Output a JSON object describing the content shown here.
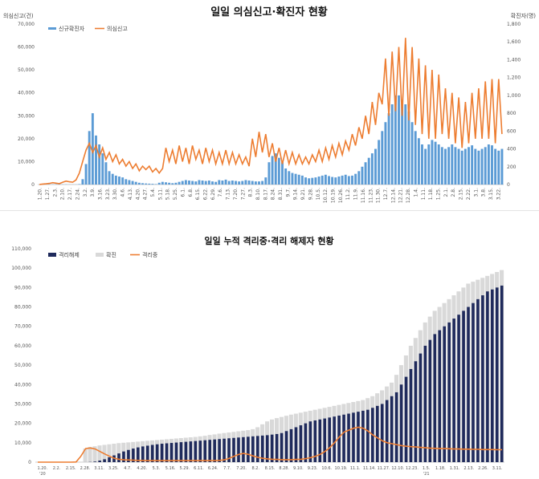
{
  "chart_data": [
    {
      "type": "bar",
      "title": "일일 의심신고·확진자 현황",
      "ylabel": "의심신고(건)",
      "y2label": "확진자(명)",
      "ylim": [
        0,
        70000
      ],
      "y2lim": [
        0,
        1800
      ],
      "yticks": [
        "0",
        "10,000",
        "20,000",
        "30,000",
        "40,000",
        "50,000",
        "60,000",
        "70,000"
      ],
      "y2ticks": [
        "0",
        "200",
        "400",
        "600",
        "800",
        "1,000",
        "1,200",
        "1,400",
        "1,600",
        "1,800"
      ],
      "xticks": [
        "1.20.",
        "1.27.",
        "2.3.",
        "2.10.",
        "2.17.",
        "2.24.",
        "3.2.",
        "3.9.",
        "3.16.",
        "3.23.",
        "3.30.",
        "4.6.",
        "4.13.",
        "4.20.",
        "4.27.",
        "5.4.",
        "5.11.",
        "5.18.",
        "5.25.",
        "6.1.",
        "6.8.",
        "6.15.",
        "6.22.",
        "6.29.",
        "7.6.",
        "7.13.",
        "7.20.",
        "7.27.",
        "8.3.",
        "8.10.",
        "8.17.",
        "8.24.",
        "8.31.",
        "9.7.",
        "9.14.",
        "9.21.",
        "9.28.",
        "10.5.",
        "10.12.",
        "10.19.",
        "10.26.",
        "11.2.",
        "11.9.",
        "11.16.",
        "11.23.",
        "11.30.",
        "12.7.",
        "12.14.",
        "12.21.",
        "12.28.",
        "1.4.",
        "1.11.",
        "1.18.",
        "1.25.",
        "2.1.",
        "2.8.",
        "2.15.",
        "2.22.",
        "3.1.",
        "3.8.",
        "3.15.",
        "3.22."
      ],
      "legend": "top-left",
      "series": [
        {
          "name": "신규확진자",
          "axis": "right",
          "kind": "bar",
          "color": "#5b9bd5",
          "values": [
            0,
            1,
            1,
            2,
            2,
            3,
            3,
            2,
            2,
            1,
            1,
            1,
            5,
            60,
            230,
            600,
            800,
            550,
            450,
            350,
            250,
            150,
            120,
            100,
            90,
            80,
            60,
            50,
            40,
            30,
            20,
            15,
            12,
            10,
            8,
            5,
            20,
            30,
            25,
            20,
            15,
            20,
            30,
            40,
            50,
            45,
            40,
            35,
            50,
            45,
            40,
            45,
            35,
            30,
            50,
            45,
            55,
            40,
            45,
            40,
            35,
            40,
            50,
            45,
            40,
            35,
            35,
            40,
            80,
            250,
            320,
            350,
            300,
            250,
            180,
            150,
            130,
            120,
            110,
            100,
            80,
            70,
            75,
            80,
            90,
            100,
            110,
            95,
            85,
            80,
            90,
            100,
            110,
            95,
            100,
            120,
            150,
            200,
            250,
            300,
            350,
            400,
            500,
            600,
            700,
            800,
            900,
            1000,
            1000,
            950,
            900,
            820,
            700,
            600,
            520,
            450,
            400,
            450,
            500,
            480,
            450,
            420,
            400,
            420,
            450,
            420,
            400,
            380,
            400,
            420,
            440,
            400,
            380,
            400,
            420,
            450,
            440,
            400,
            380,
            400
          ]
        },
        {
          "name": "의심신고",
          "axis": "left",
          "kind": "line",
          "color": "#ed7d31",
          "values": [
            50,
            200,
            300,
            500,
            800,
            600,
            400,
            1000,
            1500,
            1200,
            1000,
            2000,
            5000,
            10000,
            15000,
            18000,
            14000,
            17000,
            12000,
            16000,
            11000,
            14000,
            10000,
            13000,
            9000,
            11000,
            8000,
            10000,
            7000,
            9000,
            6000,
            8000,
            6500,
            8000,
            5500,
            7000,
            5000,
            7000,
            16000,
            10000,
            15000,
            9000,
            17000,
            10000,
            16000,
            9000,
            17000,
            11000,
            15000,
            9000,
            16000,
            10000,
            15000,
            9000,
            14000,
            9000,
            15000,
            9000,
            14000,
            9000,
            13000,
            9000,
            12000,
            8000,
            20000,
            12000,
            23000,
            14000,
            22000,
            12000,
            18000,
            10000,
            16000,
            9000,
            15000,
            9000,
            14000,
            9000,
            13000,
            9000,
            12000,
            9000,
            13000,
            10000,
            15000,
            10000,
            16000,
            11000,
            17000,
            12000,
            18000,
            13000,
            19000,
            15000,
            22000,
            17000,
            25000,
            20000,
            30000,
            22000,
            36000,
            26000,
            40000,
            35000,
            55000,
            30000,
            58000,
            32000,
            60000,
            30000,
            64000,
            28000,
            60000,
            26000,
            55000,
            22000,
            52000,
            20000,
            50000,
            20000,
            48000,
            22000,
            42000,
            20000,
            40000,
            18000,
            38000,
            16000,
            36000,
            18000,
            40000,
            20000,
            42000,
            20000,
            45000,
            20000,
            46000,
            18000,
            46000,
            22000
          ]
        }
      ]
    },
    {
      "type": "bar",
      "title": "일일 누적 격리중·격리 해제자 현황",
      "ylim": [
        0,
        110000
      ],
      "yticks": [
        "0",
        "10,000",
        "20,000",
        "30,000",
        "40,000",
        "50,000",
        "60,000",
        "70,000",
        "80,000",
        "90,000",
        "100,000",
        "110,000"
      ],
      "xticks": [
        "1.20.",
        "2.2.",
        "2.15.",
        "2.28.",
        "3.11.",
        "3.25.",
        "4.7.",
        "4.20.",
        "5.3.",
        "5.16.",
        "5.29.",
        "6.11.",
        "6.24.",
        "7.7.",
        "7.20.",
        "8.2.",
        "8.15.",
        "8.28.",
        "9.10.",
        "9.23.",
        "10.6.",
        "10.19.",
        "11.1.",
        "11.14.",
        "11.27.",
        "12.10.",
        "12.23.",
        "1.5.",
        "1.18.",
        "1.31.",
        "2.13.",
        "2.26.",
        "3.11."
      ],
      "xticks_sub": [
        "'20",
        "'21"
      ],
      "legend": "top-left",
      "series": [
        {
          "name": "격리해제",
          "kind": "bar",
          "color": "#1f2a5c",
          "values": [
            0,
            0,
            0,
            0,
            0,
            0,
            0,
            0,
            0,
            0,
            20,
            100,
            300,
            800,
            1500,
            2500,
            3500,
            4500,
            5500,
            6300,
            7000,
            7600,
            8100,
            8500,
            8900,
            9200,
            9500,
            9700,
            9900,
            10100,
            10300,
            10500,
            10700,
            10900,
            11100,
            11300,
            11500,
            11700,
            11900,
            12100,
            12300,
            12500,
            12700,
            12900,
            13100,
            13300,
            13500,
            13700,
            13900,
            14200,
            14500,
            15000,
            16000,
            17000,
            18000,
            19000,
            20000,
            21000,
            21500,
            22000,
            22500,
            23000,
            23500,
            24000,
            24500,
            25000,
            25500,
            26000,
            26500,
            27000,
            28000,
            29000,
            30000,
            32000,
            34000,
            36000,
            40000,
            44000,
            48000,
            52000,
            56000,
            60000,
            63000,
            66000,
            68000,
            70000,
            72000,
            74000,
            76000,
            78000,
            80000,
            82000,
            84000,
            86000,
            88000,
            89000,
            90000,
            91000
          ]
        },
        {
          "name": "확진",
          "kind": "bar",
          "color": "#d9d9d9",
          "values": [
            0,
            0,
            0,
            0,
            0,
            0,
            0,
            0,
            0,
            0,
            7000,
            7800,
            8200,
            8600,
            8900,
            9200,
            9500,
            9800,
            10000,
            10200,
            10400,
            10600,
            10800,
            11000,
            11200,
            11400,
            11600,
            11800,
            12000,
            12200,
            12400,
            12600,
            12800,
            13000,
            13300,
            13600,
            14000,
            14300,
            14700,
            15000,
            15300,
            15600,
            15900,
            16200,
            16500,
            17000,
            18000,
            19500,
            21000,
            22000,
            22700,
            23300,
            23900,
            24500,
            25000,
            25500,
            26000,
            26500,
            27000,
            27500,
            28000,
            28500,
            29000,
            29500,
            30000,
            30500,
            31000,
            31500,
            32000,
            33000,
            34000,
            35500,
            37000,
            39000,
            41000,
            45000,
            50000,
            55000,
            60000,
            64000,
            68000,
            72000,
            75000,
            78000,
            80000,
            82000,
            84000,
            86000,
            88000,
            90000,
            92000,
            93000,
            94000,
            95000,
            96000,
            97000,
            98000,
            99000
          ]
        },
        {
          "name": "격리중",
          "kind": "line",
          "color": "#ed7d31",
          "values": [
            0,
            0,
            0,
            0,
            0,
            0,
            0,
            0,
            100,
            3000,
            7000,
            7300,
            6800,
            5500,
            4200,
            3000,
            2000,
            1500,
            1200,
            1100,
            1000,
            900,
            850,
            800,
            800,
            800,
            800,
            800,
            800,
            800,
            800,
            800,
            800,
            800,
            800,
            800,
            800,
            800,
            900,
            1200,
            2000,
            3000,
            4000,
            4500,
            4000,
            3200,
            2500,
            2000,
            1700,
            1500,
            1400,
            1300,
            1300,
            1300,
            1400,
            1500,
            1800,
            2300,
            3000,
            4000,
            5500,
            7500,
            10000,
            13000,
            15500,
            16500,
            17500,
            18000,
            17500,
            16000,
            14000,
            12500,
            11000,
            10000,
            9500,
            9000,
            8500,
            8200,
            8000,
            7800,
            7600,
            7400,
            7200,
            7100,
            7000,
            7000,
            6900,
            6800,
            6800,
            6700,
            6700,
            6600,
            6600,
            6500,
            6500,
            6500,
            6400,
            6400
          ]
        }
      ]
    }
  ]
}
